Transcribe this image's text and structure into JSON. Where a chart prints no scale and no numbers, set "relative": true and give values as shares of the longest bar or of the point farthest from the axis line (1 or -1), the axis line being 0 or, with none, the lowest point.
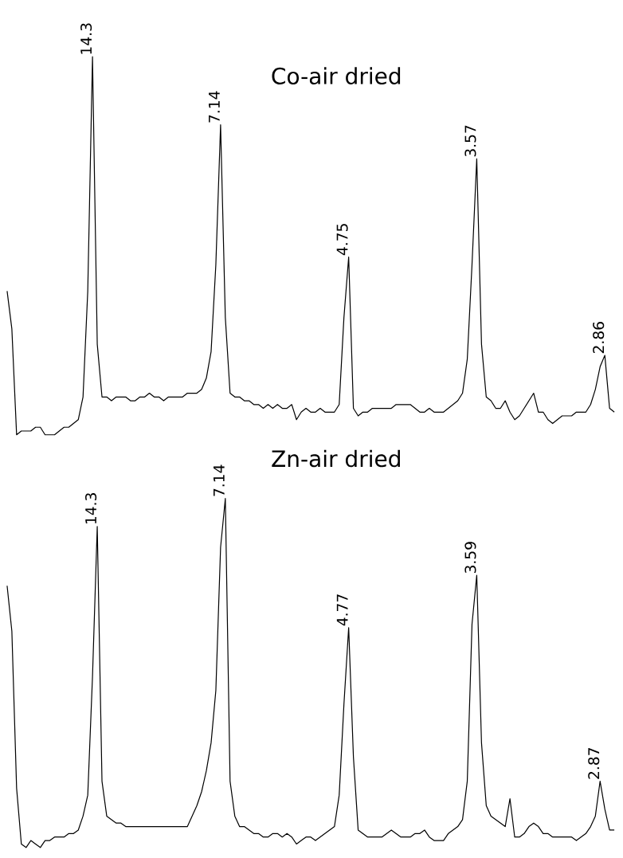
{
  "chart_data": [
    {
      "type": "line",
      "relative": true,
      "title": "Co-air dried",
      "color": "#000000",
      "categories": [
        null,
        null,
        null,
        null,
        null,
        null,
        null,
        null,
        null,
        null,
        null,
        null,
        null,
        null,
        null,
        null,
        null,
        null,
        null,
        null,
        null,
        null,
        null,
        null,
        null,
        null,
        null,
        null,
        null,
        null,
        null,
        null,
        null,
        null,
        null,
        null,
        null,
        null,
        null,
        null,
        null,
        null,
        null,
        null,
        null,
        null,
        null,
        null,
        null,
        null,
        null,
        null,
        null,
        null,
        null,
        null,
        null,
        null,
        null,
        null,
        null,
        null,
        null,
        null,
        null,
        null,
        null,
        null,
        null,
        null,
        null,
        null,
        null,
        null,
        null,
        null,
        null,
        null,
        null,
        null,
        null,
        null,
        null,
        null,
        null,
        null,
        null,
        null,
        null,
        null,
        null,
        null,
        null,
        null,
        null,
        null,
        null,
        null,
        null,
        null,
        null,
        null,
        null,
        null,
        null,
        null,
        null,
        null,
        null,
        null,
        null,
        null,
        null,
        null,
        null,
        null,
        null,
        null,
        null,
        null,
        null,
        null,
        null,
        null,
        null,
        null,
        null,
        null,
        null
      ],
      "values": [
        0.38,
        0.28,
        0,
        0.01,
        0.01,
        0.01,
        0.02,
        0.02,
        0,
        0,
        0,
        0.01,
        0.02,
        0.02,
        0.03,
        0.04,
        0.1,
        0.38,
        1.0,
        0.24,
        0.1,
        0.1,
        0.09,
        0.1,
        0.1,
        0.1,
        0.09,
        0.09,
        0.1,
        0.1,
        0.11,
        0.1,
        0.1,
        0.09,
        0.1,
        0.1,
        0.1,
        0.1,
        0.11,
        0.11,
        0.11,
        0.12,
        0.15,
        0.22,
        0.45,
        0.82,
        0.31,
        0.11,
        0.1,
        0.1,
        0.09,
        0.09,
        0.08,
        0.08,
        0.07,
        0.08,
        0.07,
        0.08,
        0.07,
        0.07,
        0.08,
        0.04,
        0.06,
        0.07,
        0.06,
        0.06,
        0.07,
        0.06,
        0.06,
        0.06,
        0.08,
        0.31,
        0.47,
        0.07,
        0.05,
        0.06,
        0.06,
        0.07,
        0.07,
        0.07,
        0.07,
        0.07,
        0.08,
        0.08,
        0.08,
        0.08,
        0.07,
        0.06,
        0.06,
        0.07,
        0.06,
        0.06,
        0.06,
        0.07,
        0.08,
        0.09,
        0.11,
        0.2,
        0.45,
        0.73,
        0.24,
        0.1,
        0.09,
        0.07,
        0.07,
        0.09,
        0.06,
        0.04,
        0.05,
        0.07,
        0.09,
        0.11,
        0.06,
        0.06,
        0.04,
        0.03,
        0.04,
        0.05,
        0.05,
        0.05,
        0.06,
        0.06,
        0.06,
        0.08,
        0.12,
        0.18,
        0.21,
        0.07,
        0.06
      ],
      "annotations": [
        "14.3",
        "7.14",
        "4.75",
        "3.57",
        "2.86"
      ]
    },
    {
      "type": "line",
      "relative": true,
      "title": "Zn-air dried",
      "color": "#000000",
      "categories": [
        null,
        null,
        null,
        null,
        null,
        null,
        null,
        null,
        null,
        null,
        null,
        null,
        null,
        null,
        null,
        null,
        null,
        null,
        null,
        null,
        null,
        null,
        null,
        null,
        null,
        null,
        null,
        null,
        null,
        null,
        null,
        null,
        null,
        null,
        null,
        null,
        null,
        null,
        null,
        null,
        null,
        null,
        null,
        null,
        null,
        null,
        null,
        null,
        null,
        null,
        null,
        null,
        null,
        null,
        null,
        null,
        null,
        null,
        null,
        null,
        null,
        null,
        null,
        null,
        null,
        null,
        null,
        null,
        null,
        null,
        null,
        null,
        null,
        null,
        null,
        null,
        null,
        null,
        null,
        null,
        null,
        null,
        null,
        null,
        null,
        null,
        null,
        null,
        null,
        null,
        null,
        null,
        null,
        null,
        null,
        null,
        null,
        null,
        null,
        null,
        null,
        null,
        null,
        null,
        null,
        null,
        null,
        null,
        null,
        null,
        null,
        null,
        null,
        null,
        null,
        null,
        null,
        null,
        null,
        null,
        null,
        null,
        null,
        null,
        null,
        null,
        null,
        null,
        null
      ],
      "values": [
        0.75,
        0.62,
        0.17,
        0.01,
        0.0,
        0.02,
        0.01,
        0.0,
        0.02,
        0.02,
        0.03,
        0.03,
        0.03,
        0.04,
        0.04,
        0.05,
        0.09,
        0.15,
        0.49,
        0.92,
        0.19,
        0.09,
        0.08,
        0.07,
        0.07,
        0.06,
        0.06,
        0.06,
        0.06,
        0.06,
        0.06,
        0.06,
        0.06,
        0.06,
        0.06,
        0.06,
        0.06,
        0.06,
        0.06,
        0.09,
        0.12,
        0.16,
        0.22,
        0.3,
        0.45,
        0.86,
        1.0,
        0.19,
        0.09,
        0.06,
        0.06,
        0.05,
        0.04,
        0.04,
        0.03,
        0.03,
        0.04,
        0.04,
        0.03,
        0.04,
        0.03,
        0.01,
        0.02,
        0.03,
        0.03,
        0.02,
        0.03,
        0.04,
        0.05,
        0.06,
        0.15,
        0.41,
        0.63,
        0.26,
        0.05,
        0.04,
        0.03,
        0.03,
        0.03,
        0.03,
        0.04,
        0.05,
        0.04,
        0.03,
        0.03,
        0.03,
        0.04,
        0.04,
        0.05,
        0.03,
        0.02,
        0.02,
        0.02,
        0.04,
        0.05,
        0.06,
        0.08,
        0.19,
        0.64,
        0.78,
        0.3,
        0.12,
        0.09,
        0.08,
        0.07,
        0.06,
        0.14,
        0.03,
        0.03,
        0.04,
        0.06,
        0.07,
        0.06,
        0.04,
        0.04,
        0.03,
        0.03,
        0.03,
        0.03,
        0.03,
        0.02,
        0.03,
        0.04,
        0.06,
        0.09,
        0.19,
        0.11,
        0.05,
        0.05
      ],
      "annotations": [
        "14.3",
        "7.14",
        "4.77",
        "3.59",
        "2.87"
      ]
    }
  ]
}
